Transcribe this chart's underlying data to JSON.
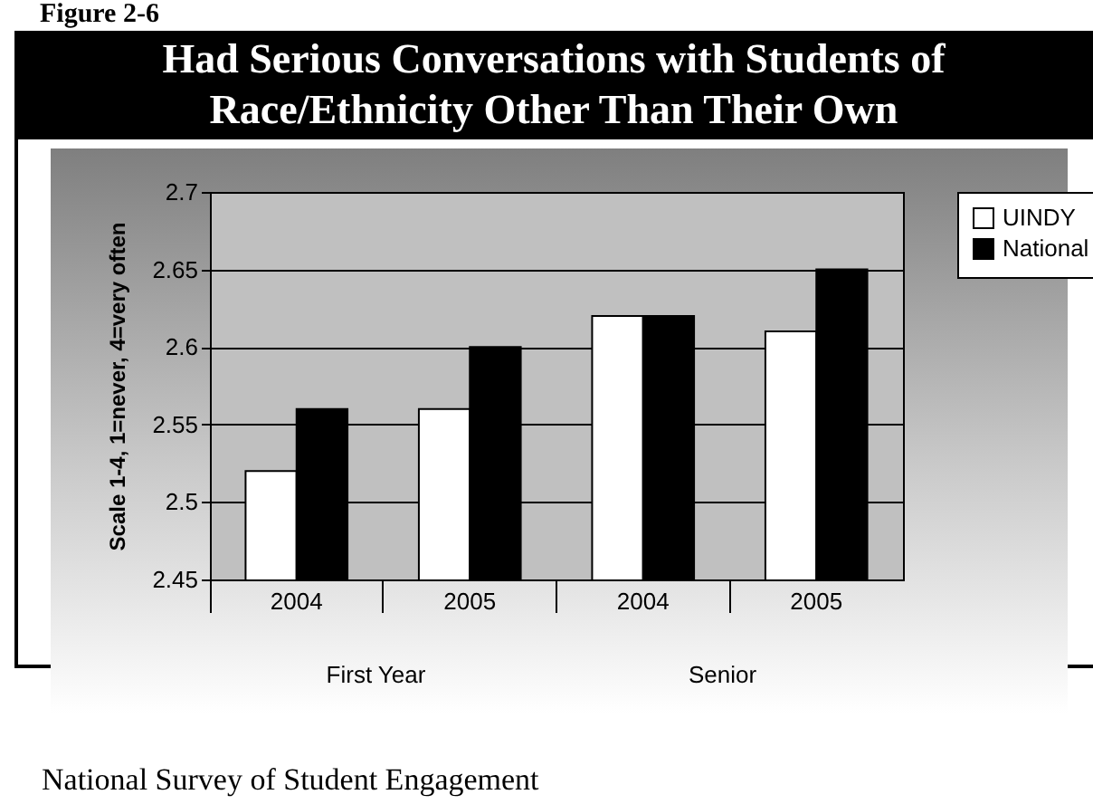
{
  "chart_data": {
    "type": "bar",
    "title": "Had Serious Conversations with Students of Race/Ethnicity Other Than Their Own",
    "ylabel": "Scale 1-4,   1=never,  4=very often",
    "categories": [
      "2004",
      "2005",
      "2004",
      "2005"
    ],
    "series": [
      {
        "name": "UINDY",
        "color": "#ffffff",
        "values": [
          2.52,
          2.56,
          2.62,
          2.61
        ]
      },
      {
        "name": "National",
        "color": "#000000",
        "values": [
          2.56,
          2.6,
          2.62,
          2.65
        ]
      }
    ],
    "ylim": [
      2.45,
      2.7
    ],
    "yticks": [
      2.45,
      2.5,
      2.55,
      2.6,
      2.65,
      2.7
    ],
    "grid": "y",
    "legend": "right",
    "annotations": [
      "Figure 2-6",
      "First Year",
      "Senior",
      "National Survey of Student Engagement"
    ]
  }
}
